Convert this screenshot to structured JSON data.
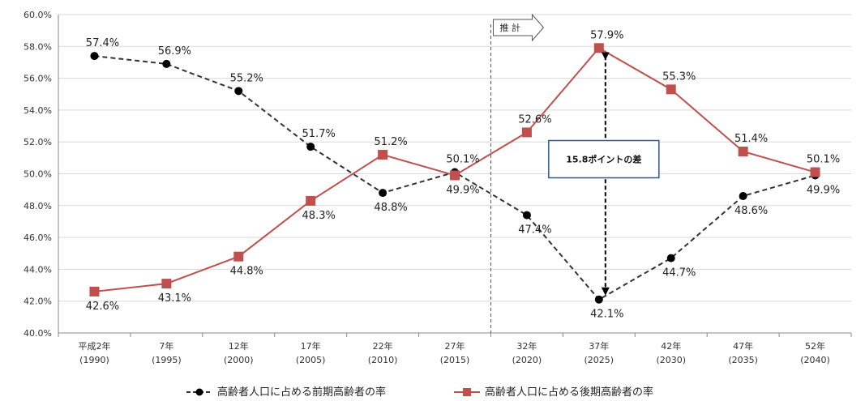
{
  "chart_data": {
    "type": "line",
    "categories": [
      [
        "平成2年",
        "(1990)"
      ],
      [
        "7年",
        "(1995)"
      ],
      [
        "12年",
        "(2000)"
      ],
      [
        "17年",
        "(2005)"
      ],
      [
        "22年",
        "(2010)"
      ],
      [
        "27年",
        "(2015)"
      ],
      [
        "32年",
        "(2020)"
      ],
      [
        "37年",
        "(2025)"
      ],
      [
        "42年",
        "(2030)"
      ],
      [
        "47年",
        "(2035)"
      ],
      [
        "52年",
        "(2040)"
      ]
    ],
    "ylim": [
      40.0,
      60.0
    ],
    "ytick_step": 2.0,
    "ytick_format": "percent_1dp",
    "grid": true,
    "legend_position": "bottom",
    "projection_start_index": 6,
    "projection_label": "推 計",
    "series": [
      {
        "name": "高齢者人口に占める前期高齢者の率",
        "color": "#333333",
        "line_style": "dashed",
        "marker": "circle",
        "marker_color": "#000000",
        "values": [
          57.4,
          56.9,
          55.2,
          51.7,
          48.8,
          50.1,
          47.4,
          42.1,
          44.7,
          48.6,
          49.9
        ],
        "labels": [
          "57.4%",
          "56.9%",
          "55.2%",
          "51.7%",
          "48.8%",
          "50.1%",
          "47.4%",
          "42.1%",
          "44.7%",
          "48.6%",
          "49.9%"
        ]
      },
      {
        "name": "高齢者人口に占める後期高齢者の率",
        "color": "#c0504d",
        "line_style": "solid",
        "marker": "square",
        "marker_color": "#c0504d",
        "values": [
          42.6,
          43.1,
          44.8,
          48.3,
          51.2,
          49.9,
          52.6,
          57.9,
          55.3,
          51.4,
          50.1
        ],
        "labels": [
          "42.6%",
          "43.1%",
          "44.8%",
          "48.3%",
          "51.2%",
          "49.9%",
          "52.6%",
          "57.9%",
          "55.3%",
          "51.4%",
          "50.1%"
        ]
      }
    ],
    "annotation": {
      "text": "15.8ポイントの差",
      "category_index": 7
    }
  }
}
